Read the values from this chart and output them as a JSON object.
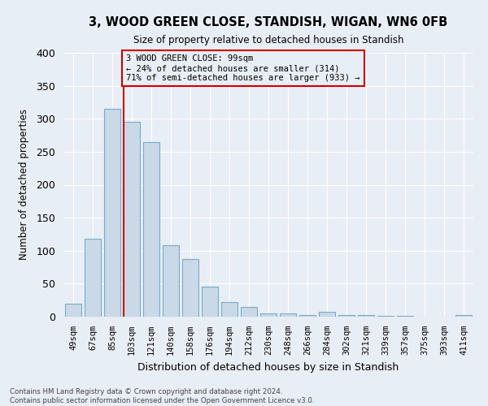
{
  "title": "3, WOOD GREEN CLOSE, STANDISH, WIGAN, WN6 0FB",
  "subtitle": "Size of property relative to detached houses in Standish",
  "xlabel": "Distribution of detached houses by size in Standish",
  "ylabel": "Number of detached properties",
  "footer_line1": "Contains HM Land Registry data © Crown copyright and database right 2024.",
  "footer_line2": "Contains public sector information licensed under the Open Government Licence v3.0.",
  "bar_labels": [
    "49sqm",
    "67sqm",
    "85sqm",
    "103sqm",
    "121sqm",
    "140sqm",
    "158sqm",
    "176sqm",
    "194sqm",
    "212sqm",
    "230sqm",
    "248sqm",
    "266sqm",
    "284sqm",
    "302sqm",
    "321sqm",
    "339sqm",
    "357sqm",
    "375sqm",
    "393sqm",
    "411sqm"
  ],
  "bar_values": [
    20,
    118,
    315,
    295,
    265,
    108,
    88,
    45,
    22,
    15,
    5,
    5,
    3,
    7,
    2,
    2,
    1,
    1,
    0,
    0,
    2
  ],
  "bar_color": "#c9d9e8",
  "bar_edge_color": "#7aaac8",
  "background_color": "#e8eef5",
  "grid_color": "#ffffff",
  "vline_color": "#cc0000",
  "annotation_text": "3 WOOD GREEN CLOSE: 99sqm\n← 24% of detached houses are smaller (314)\n71% of semi-detached houses are larger (933) →",
  "annotation_box_edge": "#cc0000",
  "ylim": [
    0,
    400
  ],
  "yticks": [
    0,
    50,
    100,
    150,
    200,
    250,
    300,
    350,
    400
  ]
}
